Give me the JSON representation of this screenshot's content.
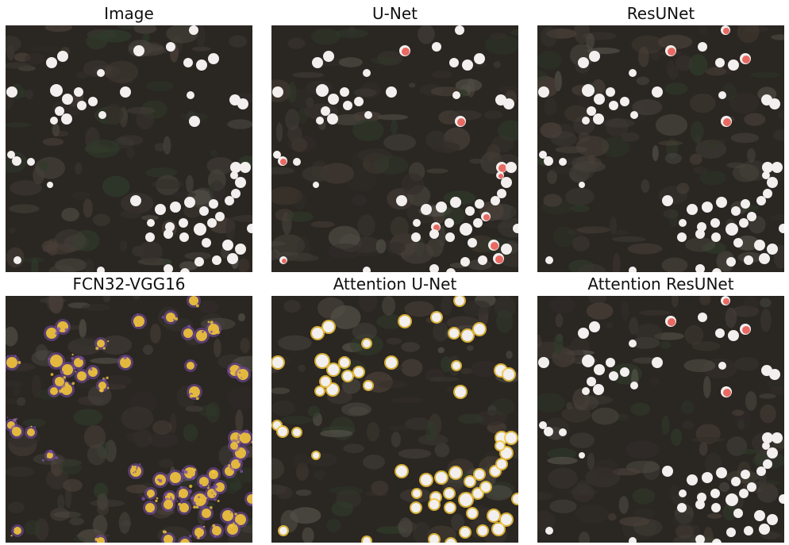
{
  "panels": [
    {
      "title": "Image",
      "overlay": "none"
    },
    {
      "title": "U-Net",
      "overlay": "sparse-red-errors"
    },
    {
      "title": "ResUNet",
      "overlay": "few-red-errors"
    },
    {
      "title": "FCN32-VGG16",
      "overlay": "noisy-heat"
    },
    {
      "title": "Attention U-Net",
      "overlay": "yellow-edges"
    },
    {
      "title": "Attention ResUNet",
      "overlay": "few-red-errors"
    }
  ],
  "colors": {
    "background": "#ffffff",
    "canopy_dark": "#2a2622",
    "canopy_mid": "#3b352f",
    "crown": "#f2efee",
    "error_red": "#e8514a",
    "heat_yellow": "#f2c53a",
    "heat_purple": "#7a4fa8"
  }
}
